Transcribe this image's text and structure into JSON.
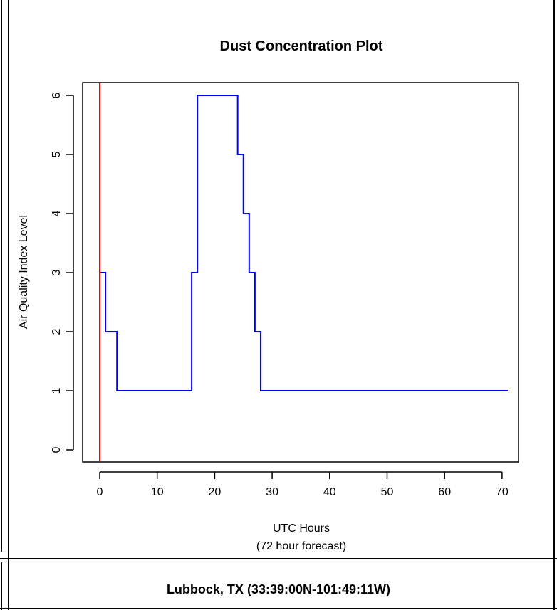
{
  "chart_data": {
    "type": "line",
    "title": "Dust Concentration Plot",
    "xlabel": "UTC Hours",
    "xlabel_sub": "(72 hour forecast)",
    "ylabel": "Air Quality Index Level",
    "xlim": [
      -2,
      73
    ],
    "ylim": [
      0,
      6
    ],
    "x_ticks": [
      0,
      10,
      20,
      30,
      40,
      50,
      60,
      70
    ],
    "x_tick_labels": [
      "0",
      "10",
      "20",
      "30",
      "40",
      "50",
      "60",
      "70"
    ],
    "y_tick_positions": [
      0,
      1,
      2,
      3,
      4,
      5,
      6
    ],
    "y_tick_labels": [
      "0",
      "1",
      "2",
      "3",
      "4",
      "5",
      "6"
    ],
    "step_series": {
      "color": "#0000ff",
      "points": [
        [
          0,
          3
        ],
        [
          1,
          2
        ],
        [
          3,
          1
        ],
        [
          16,
          3
        ],
        [
          17,
          6
        ],
        [
          24,
          5
        ],
        [
          25,
          4
        ],
        [
          26,
          3
        ],
        [
          27,
          2
        ],
        [
          28,
          1
        ],
        [
          71,
          1
        ]
      ]
    },
    "current_time_marker": {
      "x": 0,
      "color": "#ff0000"
    }
  },
  "footer": {
    "location": "Lubbock, TX (33:39:00N-101:49:11W)"
  }
}
